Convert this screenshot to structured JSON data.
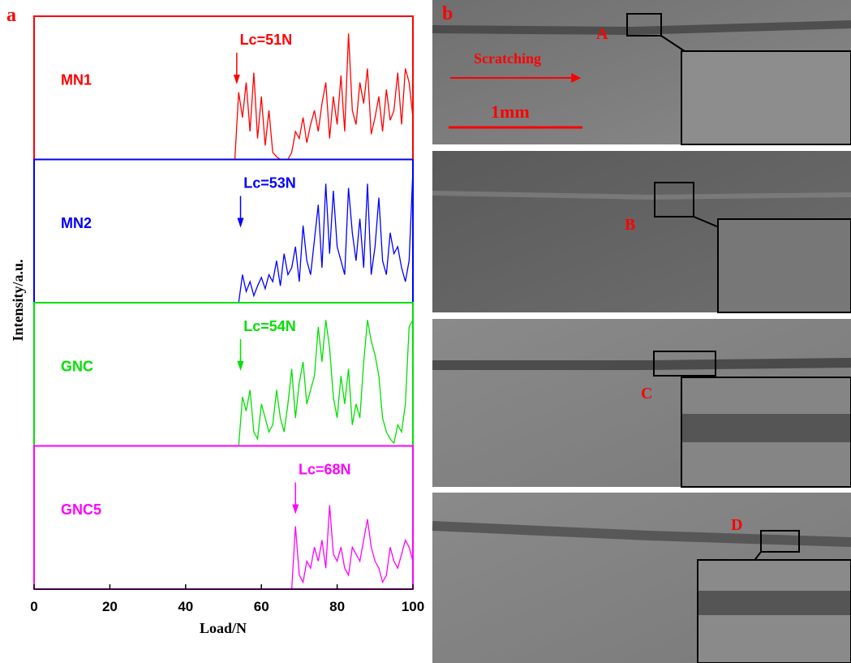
{
  "chart_data": {
    "type": "line",
    "panel_label": "a",
    "x_label": "Load/N",
    "y_label": "Intensity/a.u.",
    "xlim": [
      0,
      100
    ],
    "xticks": [
      0,
      20,
      40,
      60,
      80,
      100
    ],
    "ylim": [
      0,
      1
    ],
    "x": [
      50,
      51,
      52,
      53,
      54,
      55,
      56,
      57,
      58,
      59,
      60,
      61,
      62,
      63,
      64,
      65,
      66,
      67,
      68,
      69,
      70,
      71,
      72,
      73,
      74,
      75,
      76,
      77,
      78,
      79,
      80,
      81,
      82,
      83,
      84,
      85,
      86,
      87,
      88,
      89,
      90,
      91,
      92,
      93,
      94,
      95,
      96,
      97,
      98,
      99,
      100
    ],
    "series": [
      {
        "name": "MN1",
        "color": "#ff0000",
        "annotation": {
          "text": "Lc=51N",
          "x": 53.5
        },
        "values": [
          0,
          0,
          0,
          0,
          0.48,
          0.3,
          0.55,
          0.2,
          0.62,
          0.15,
          0.45,
          0.1,
          0.35,
          0.05,
          0.02,
          0,
          0,
          0,
          0.05,
          0.2,
          0.15,
          0.3,
          0.12,
          0.25,
          0.35,
          0.2,
          0.4,
          0.55,
          0.15,
          0.45,
          0.25,
          0.6,
          0.2,
          0.9,
          0.35,
          0.25,
          0.55,
          0.4,
          0.65,
          0.18,
          0.3,
          0.45,
          0.2,
          0.5,
          0.28,
          0.35,
          0.62,
          0.25,
          0.65,
          0.55,
          0.3
        ]
      },
      {
        "name": "MN2",
        "color": "#0000ff",
        "annotation": {
          "text": "Lc=53N",
          "x": 54.5
        },
        "values": [
          0,
          0,
          0,
          0,
          0,
          0.2,
          0.08,
          0.15,
          0.05,
          0.12,
          0.18,
          0.1,
          0.2,
          0.15,
          0.3,
          0.12,
          0.35,
          0.2,
          0.25,
          0.4,
          0.15,
          0.55,
          0.3,
          0.2,
          0.45,
          0.7,
          0.25,
          0.85,
          0.35,
          0.8,
          0.4,
          0.3,
          0.2,
          0.82,
          0.5,
          0.3,
          0.6,
          0.25,
          0.85,
          0.2,
          0.4,
          0.75,
          0.3,
          0.2,
          0.5,
          0.35,
          0.4,
          0.25,
          0.15,
          0.3,
          0.95
        ]
      },
      {
        "name": "GNC",
        "color": "#00e000",
        "annotation": {
          "text": "Lc=54N",
          "x": 54.5
        },
        "values": [
          0,
          0,
          0,
          0,
          0,
          0.35,
          0.25,
          0.4,
          0.1,
          0.05,
          0.3,
          0.2,
          0.1,
          0.15,
          0.4,
          0.2,
          0.1,
          0.3,
          0.55,
          0.2,
          0.45,
          0.6,
          0.3,
          0.4,
          0.5,
          0.85,
          0.6,
          0.9,
          0.7,
          0.35,
          0.2,
          0.5,
          0.3,
          0.55,
          0.15,
          0.3,
          0.2,
          0.6,
          0.9,
          0.75,
          0.65,
          0.5,
          0.2,
          0.1,
          0.05,
          0.02,
          0.15,
          0.1,
          0.3,
          0.85,
          0.9
        ]
      },
      {
        "name": "GNC5",
        "color": "#ff00ff",
        "annotation": {
          "text": "Lc=68N",
          "x": 69
        },
        "values": [
          0,
          0,
          0,
          0,
          0,
          0,
          0,
          0,
          0,
          0,
          0,
          0,
          0,
          0,
          0,
          0,
          0,
          0,
          0,
          0.45,
          0.1,
          0.05,
          0.2,
          0.15,
          0.3,
          0.2,
          0.35,
          0.15,
          0.6,
          0.25,
          0.2,
          0.3,
          0.15,
          0.1,
          0.3,
          0.25,
          0.2,
          0.35,
          0.5,
          0.3,
          0.2,
          0.15,
          0.05,
          0.1,
          0.3,
          0.2,
          0.15,
          0.25,
          0.35,
          0.3,
          0.2
        ]
      }
    ]
  },
  "image_panel": {
    "label": "b",
    "direction": "Scratching",
    "scale_bar": "1mm",
    "regions": [
      "A",
      "B",
      "C",
      "D"
    ]
  }
}
